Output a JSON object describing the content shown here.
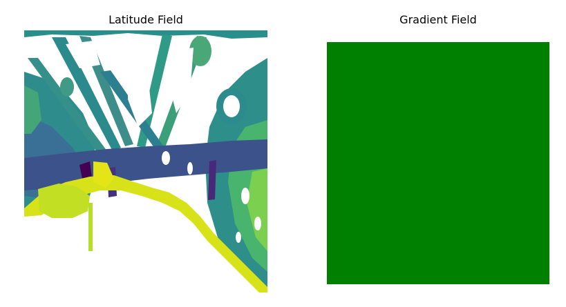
{
  "chart_data": [
    {
      "type": "heatmap",
      "title": "Latitude Field",
      "xlabel": "",
      "ylabel": "",
      "axes": "off",
      "colormap": [
        "#440154",
        "#3b528b",
        "#21918c",
        "#5ec962",
        "#fde725"
      ],
      "description_values": "per-pixel latitude values rendered with viridis colormap; NaN regions shown white"
    },
    {
      "type": "heatmap",
      "title": "Gradient Field",
      "xlabel": "",
      "ylabel": "",
      "axes": "off",
      "fill_color": "#008000"
    }
  ]
}
